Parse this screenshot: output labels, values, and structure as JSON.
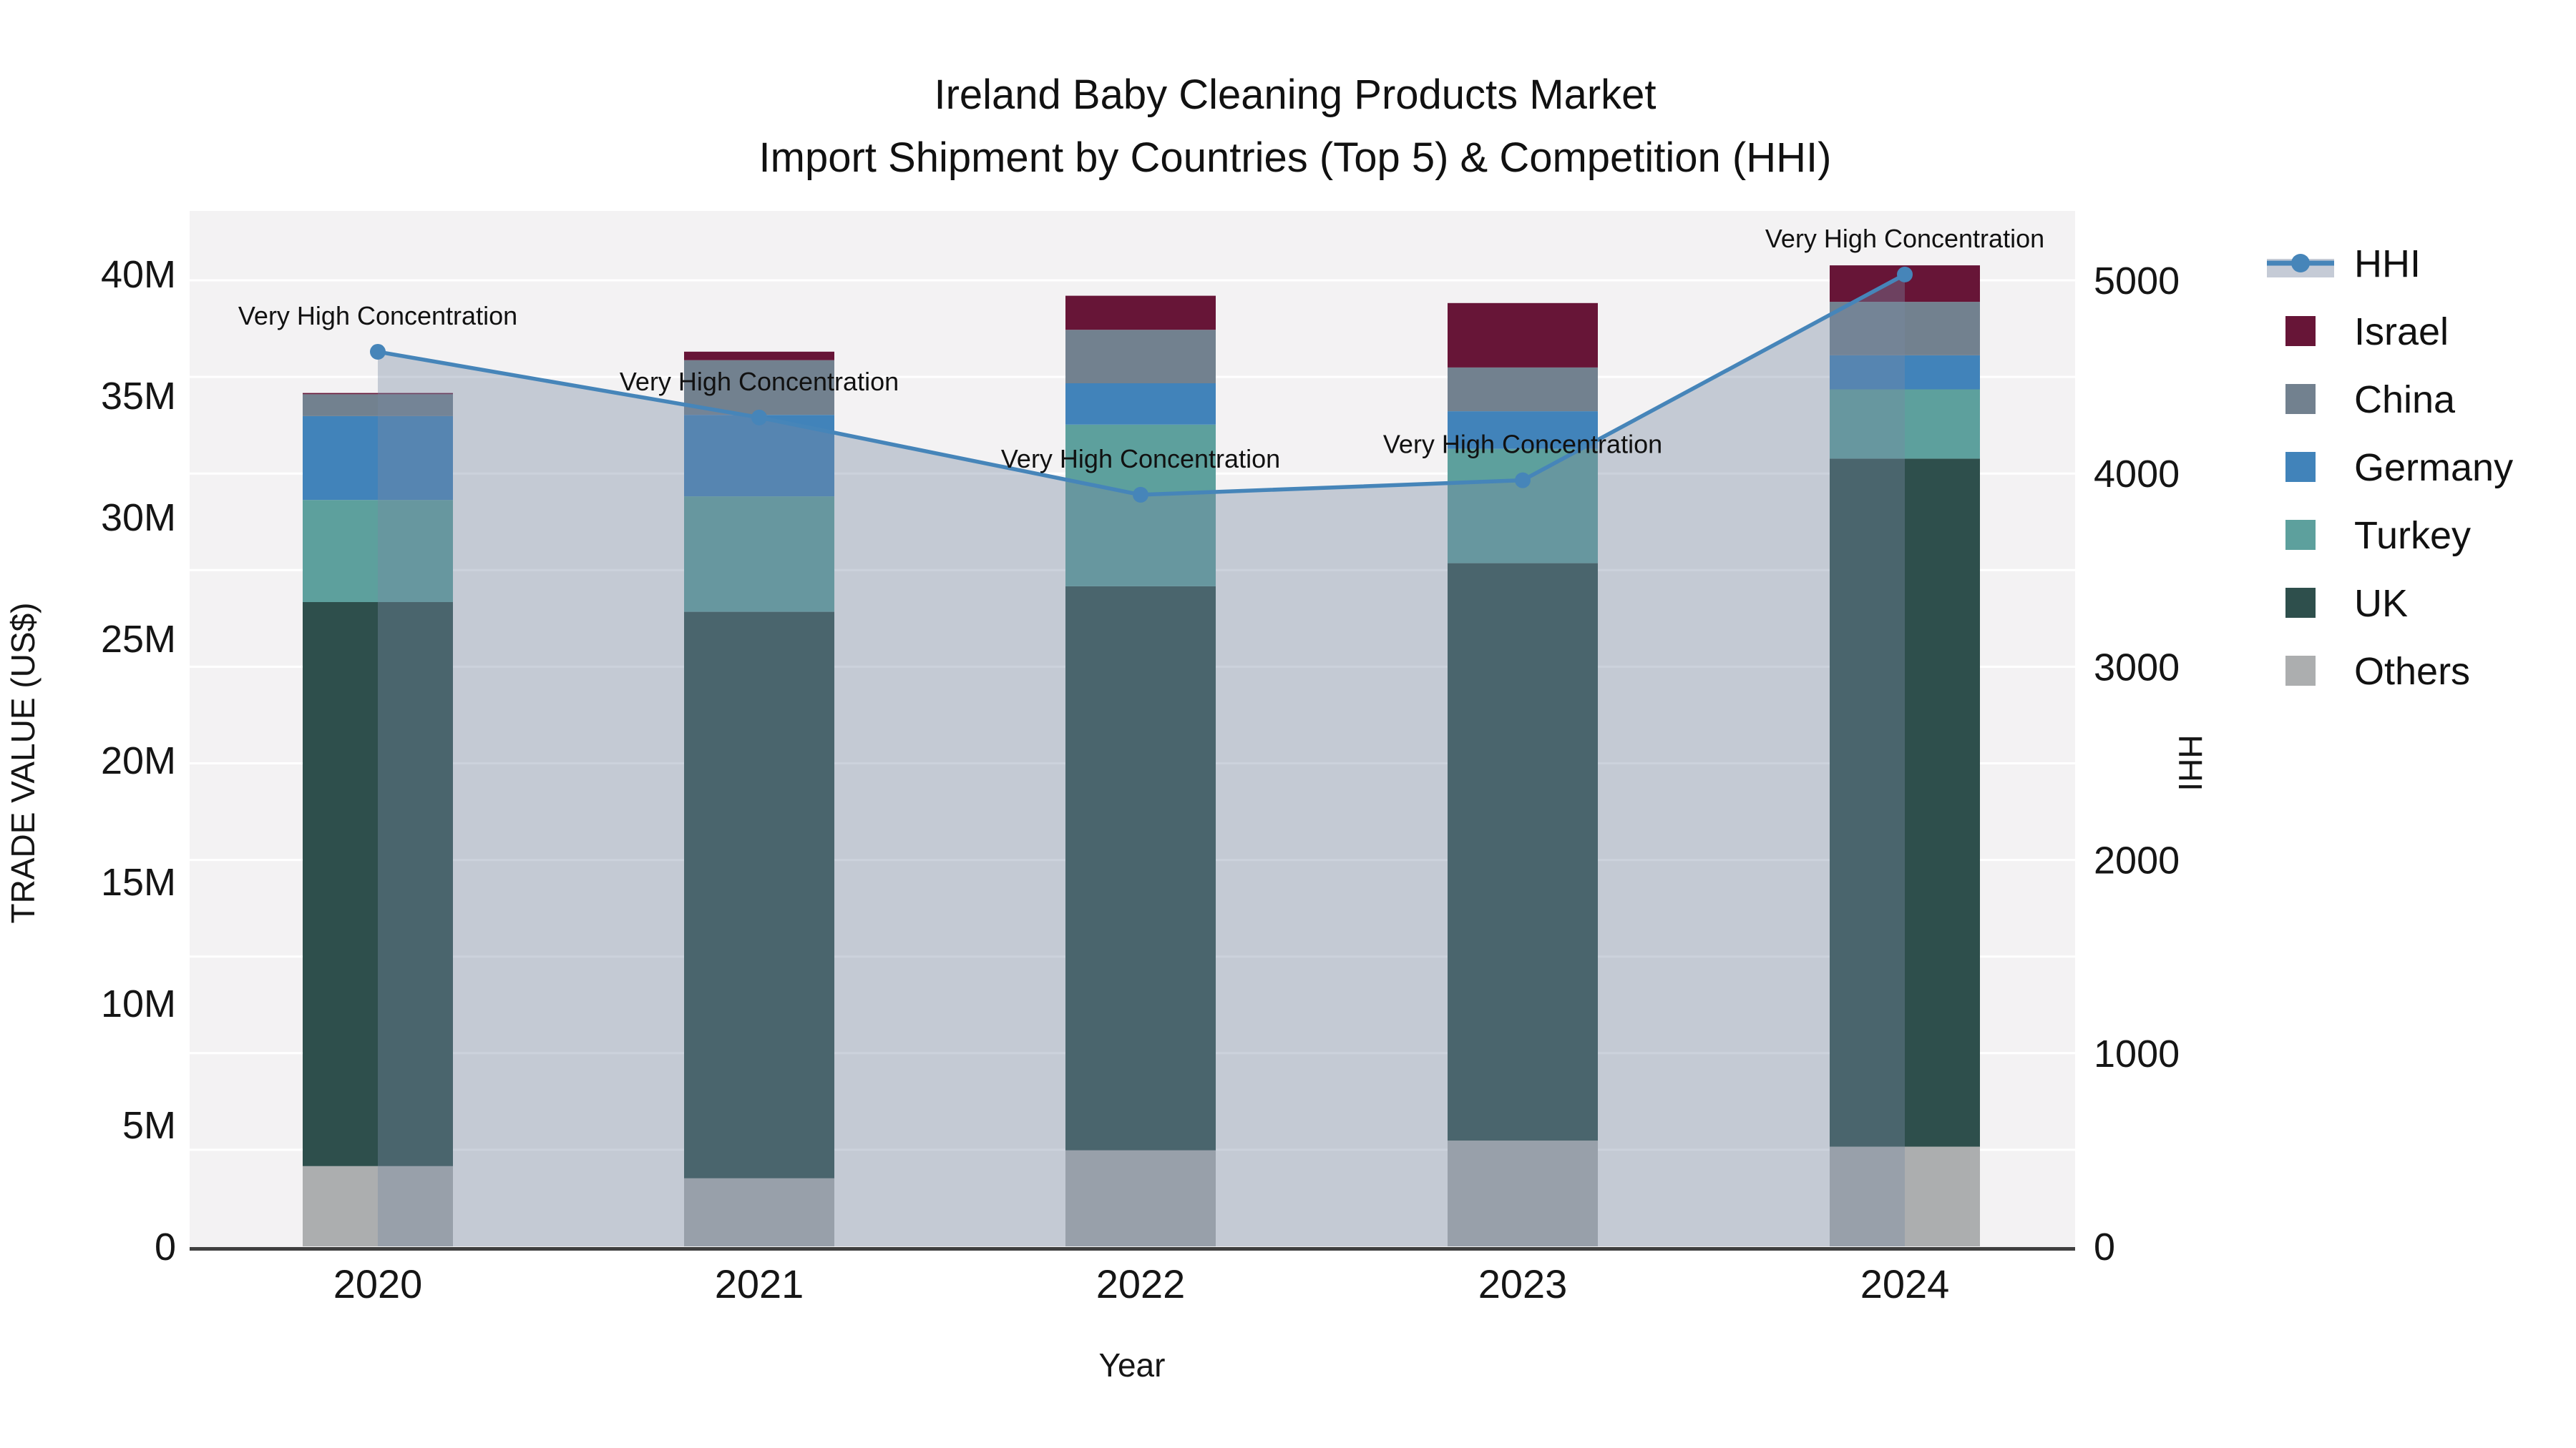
{
  "title": {
    "line1": "Ireland Baby Cleaning Products Market",
    "line2": "Import Shipment by Countries (Top 5) & Competition (HHI)"
  },
  "axes": {
    "x": {
      "title": "Year",
      "categories": [
        "2020",
        "2021",
        "2022",
        "2023",
        "2024"
      ]
    },
    "y_left": {
      "title": "TRADE VALUE (US$)",
      "tick_labels": [
        "0",
        "5M",
        "10M",
        "15M",
        "20M",
        "25M",
        "30M",
        "35M",
        "40M"
      ],
      "tick_values_m": [
        0,
        5,
        10,
        15,
        20,
        25,
        30,
        35,
        40
      ],
      "range_m": [
        0,
        40
      ]
    },
    "y_right": {
      "title": "HHI",
      "tick_labels": [
        "0",
        "1000",
        "2000",
        "3000",
        "4000",
        "5000"
      ],
      "tick_values": [
        0,
        1000,
        2000,
        3000,
        4000,
        5000
      ],
      "range": [
        0,
        5000
      ]
    }
  },
  "legend": {
    "items": [
      {
        "label": "HHI",
        "type": "line",
        "color": "#4685b9",
        "band_color": "#c5cbd6"
      },
      {
        "label": "Israel",
        "type": "swatch",
        "color": "#671537"
      },
      {
        "label": "China",
        "type": "swatch",
        "color": "#72818f"
      },
      {
        "label": "Germany",
        "type": "swatch",
        "color": "#4183ba"
      },
      {
        "label": "Turkey",
        "type": "swatch",
        "color": "#5da09d"
      },
      {
        "label": "UK",
        "type": "swatch",
        "color": "#2e4f4c"
      },
      {
        "label": "Others",
        "type": "swatch",
        "color": "#acaeaf"
      }
    ]
  },
  "chart_data": {
    "type": [
      "stacked-bar",
      "line-with-area"
    ],
    "categories": [
      "2020",
      "2021",
      "2022",
      "2023",
      "2024"
    ],
    "bar_unit": "million US$",
    "series": [
      {
        "name": "Others",
        "color": "#acaeaf",
        "values": [
          3.3,
          2.8,
          3.95,
          4.35,
          4.1
        ]
      },
      {
        "name": "UK",
        "color": "#2e4f4c",
        "values": [
          23.2,
          23.3,
          23.2,
          23.75,
          28.3
        ]
      },
      {
        "name": "Turkey",
        "color": "#5da09d",
        "values": [
          4.2,
          4.75,
          6.65,
          4.7,
          2.85
        ]
      },
      {
        "name": "Germany",
        "color": "#4183ba",
        "values": [
          3.45,
          3.35,
          1.7,
          1.55,
          1.4
        ]
      },
      {
        "name": "China",
        "color": "#72818f",
        "values": [
          0.9,
          2.25,
          2.2,
          1.8,
          2.2
        ]
      },
      {
        "name": "Israel",
        "color": "#671537",
        "values": [
          0.05,
          0.35,
          1.4,
          2.65,
          1.5
        ]
      }
    ],
    "stack_totals_m": [
      35.1,
      36.8,
      39.1,
      38.8,
      40.35
    ],
    "hhi": {
      "name": "HHI",
      "color": "#4685b9",
      "area_fill": "rgba(121,137,164,0.38)",
      "values": [
        4630,
        4290,
        3890,
        3965,
        5030
      ],
      "annotations": [
        "Very High Concentration",
        "Very High Concentration",
        "Very High Concentration",
        "Very High Concentration",
        "Very High Concentration"
      ]
    },
    "ylim_left_m": [
      0,
      40
    ],
    "ylim_right": [
      0,
      5000
    ],
    "grid": "on",
    "legend_position": "right"
  },
  "colors": {
    "plot_background": "#f3f2f3",
    "gridline": "#ffffff",
    "axis_spine": "#3f3f3f",
    "text": "#111111"
  }
}
